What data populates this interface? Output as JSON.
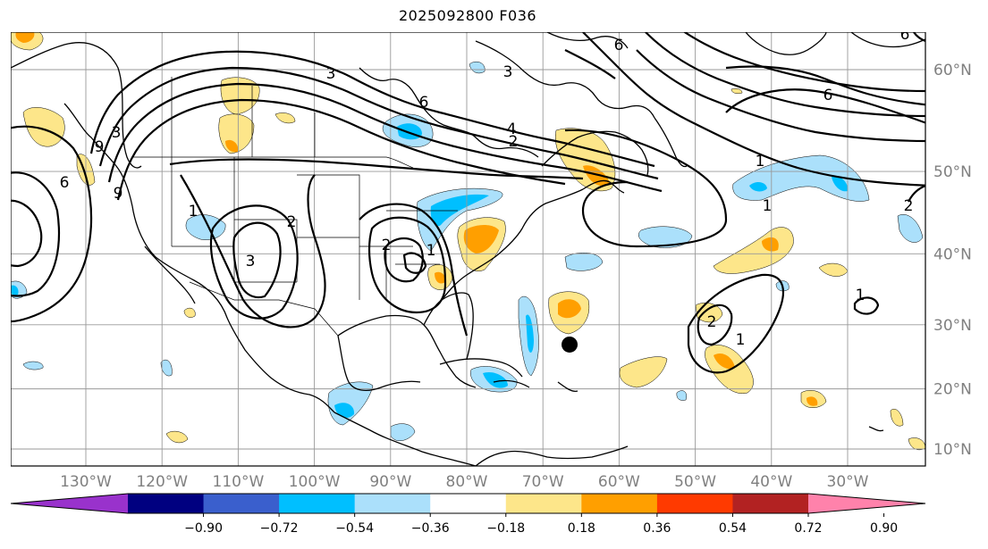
{
  "title": "2025092800 F036",
  "lon_labels": [
    {
      "text": "130°W",
      "lon": -130
    },
    {
      "text": "120°W",
      "lon": -120
    },
    {
      "text": "110°W",
      "lon": -110
    },
    {
      "text": "100°W",
      "lon": -100
    },
    {
      "text": "90°W",
      "lon": -90
    },
    {
      "text": "80°W",
      "lon": -80
    },
    {
      "text": "70°W",
      "lon": -70
    },
    {
      "text": "60°W",
      "lon": -60
    },
    {
      "text": "50°W",
      "lon": -50
    },
    {
      "text": "40°W",
      "lon": -40
    },
    {
      "text": "30°W",
      "lon": -30
    }
  ],
  "lat_labels": [
    {
      "text": "60°N",
      "lat": 60
    },
    {
      "text": "50°N",
      "lat": 50
    },
    {
      "text": "40°N",
      "lat": 40
    },
    {
      "text": "30°N",
      "lat": 30
    },
    {
      "text": "20°N",
      "lat": 20
    },
    {
      "text": "10°N",
      "lat": 10
    }
  ],
  "colorbar": {
    "colors": [
      "#9932cc",
      "#000080",
      "#3a5fcd",
      "#00bfff",
      "#abe0fb",
      "#ffffff",
      "#fde68a",
      "#ff9f00",
      "#ff3a00",
      "#b22222",
      "#ff82ab"
    ],
    "ticks": [
      "−0.90",
      "−0.72",
      "−0.54",
      "−0.36",
      "−0.18",
      "0.18",
      "0.36",
      "0.54",
      "0.72",
      "0.90"
    ]
  },
  "contour_labels": [
    "3",
    "6",
    "4",
    "2",
    "6",
    "6",
    "9",
    "3",
    "6",
    "9",
    "6",
    "3",
    "1",
    "1",
    "2",
    "3",
    "2",
    "1",
    "2",
    "1",
    "1",
    "2",
    "1"
  ],
  "marker": {
    "name": "storm-center",
    "lon": -66.5,
    "lat": 27
  }
}
